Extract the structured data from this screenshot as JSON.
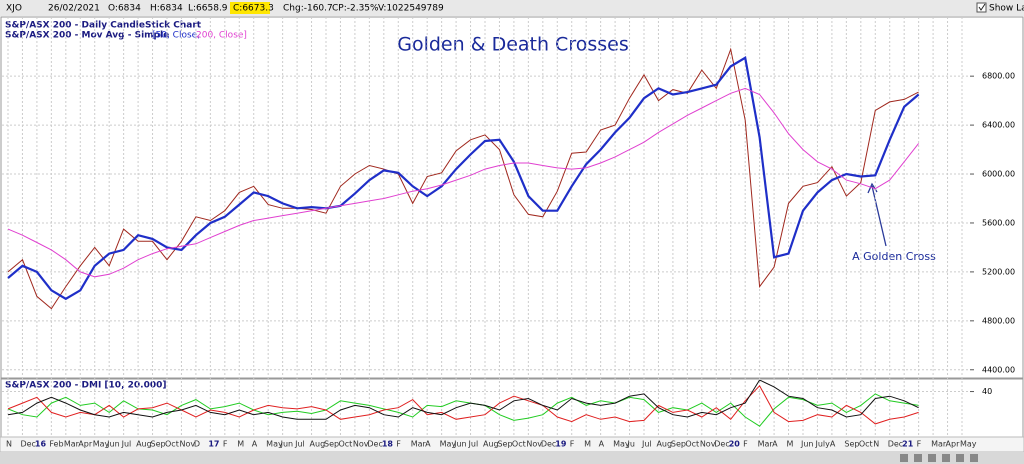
{
  "toolbar": {
    "symbol": "XJO",
    "date": "26/02/2021",
    "open": "O:6834",
    "high": "H:6834",
    "low": "L:6658.9",
    "close": "C:6673.3",
    "change": "Chg:-160.7",
    "change_pct": "CP:-2.35%",
    "volume": "V:1022549789",
    "show_last": "Show Last"
  },
  "chart_data": [
    {
      "type": "line",
      "title": "Golden & Death Crosses",
      "legend_lines": [
        "S&P/ASX 200 - Daily CandleStick Chart",
        "S&P/ASX 200 - Mov Avg - Simple",
        "[50, Close,",
        "200, Close]"
      ],
      "annotation": "A Golden Cross",
      "categories": [
        "N",
        "Dec",
        "16",
        "Feb",
        "Mar",
        "Apr",
        "May",
        "Jun",
        "Jul",
        "Aug",
        "Sep",
        "Oct",
        "Nov",
        "D",
        "17",
        "F",
        "M",
        "A",
        "May",
        "Jun",
        "Jul",
        "Aug",
        "Sep",
        "Oct",
        "Nov",
        "Dec",
        "18",
        "F",
        "Mar",
        "A",
        "May",
        "Jun",
        "Jul",
        "Aug",
        "Sep",
        "Oct",
        "Nov",
        "Dec",
        "19",
        "F",
        "M",
        "A",
        "May",
        "Ju",
        "Jul",
        "Aug",
        "Sep",
        "Oct",
        "Nov",
        "Dec",
        "20",
        "F",
        "Mar",
        "A",
        "M",
        "Jun",
        "July",
        "A",
        "Sep",
        "Oct",
        "N",
        "Dec",
        "21",
        "F",
        "Mar",
        "Apr",
        "May"
      ],
      "series": [
        {
          "color": "#a0281e",
          "values": [
            5200,
            5300,
            5000,
            4900,
            5080,
            5250,
            5400,
            5250,
            5550,
            5450,
            5450,
            5300,
            5450,
            5650,
            5620,
            5700,
            5850,
            5900,
            5750,
            5720,
            5720,
            5710,
            5680,
            5900,
            6000,
            6070,
            6040,
            6000,
            5760,
            5980,
            6010,
            6190,
            6280,
            6320,
            6200,
            5830,
            5670,
            5650,
            5860,
            6170,
            6180,
            6360,
            6400,
            6620,
            6810,
            6600,
            6690,
            6660,
            6850,
            6700,
            7020,
            6440,
            5080,
            5240,
            5760,
            5900,
            5930,
            6060,
            5820,
            5930,
            6520,
            6590,
            6610,
            6670,
            null,
            null,
            null
          ]
        },
        {
          "color": "#1f2fc8",
          "values": [
            5150,
            5250,
            5200,
            5050,
            4980,
            5050,
            5250,
            5350,
            5380,
            5500,
            5470,
            5400,
            5380,
            5500,
            5600,
            5650,
            5750,
            5850,
            5820,
            5760,
            5720,
            5730,
            5720,
            5740,
            5840,
            5950,
            6030,
            6010,
            5900,
            5820,
            5900,
            6040,
            6160,
            6270,
            6280,
            6100,
            5820,
            5700,
            5700,
            5900,
            6080,
            6200,
            6340,
            6460,
            6620,
            6700,
            6650,
            6670,
            6700,
            6730,
            6880,
            6950,
            6300,
            5320,
            5350,
            5700,
            5850,
            5950,
            6000,
            5980,
            5990,
            6280,
            6550,
            6650,
            null,
            null,
            null
          ]
        },
        {
          "color": "#e040d0",
          "values": [
            5550,
            5500,
            5440,
            5380,
            5300,
            5200,
            5160,
            5180,
            5230,
            5300,
            5350,
            5390,
            5410,
            5430,
            5480,
            5530,
            5580,
            5620,
            5640,
            5660,
            5680,
            5700,
            5720,
            5740,
            5760,
            5780,
            5800,
            5830,
            5860,
            5880,
            5910,
            5950,
            5990,
            6040,
            6070,
            6090,
            6090,
            6070,
            6050,
            6040,
            6050,
            6090,
            6140,
            6200,
            6260,
            6340,
            6410,
            6480,
            6540,
            6600,
            6660,
            6700,
            6650,
            6500,
            6330,
            6200,
            6100,
            6040,
            5950,
            5920,
            5880,
            5950,
            6100,
            6250,
            null,
            null,
            null
          ]
        }
      ],
      "ylim": [
        4300,
        7300
      ],
      "yticks": [
        {
          "value": 4400,
          "label": "4400.00"
        },
        {
          "value": 4800,
          "label": "4800.00"
        },
        {
          "value": 5200,
          "label": "5200.00"
        },
        {
          "value": 5600,
          "label": "5600.00"
        },
        {
          "value": 6000,
          "label": "6000.00"
        },
        {
          "value": 6400,
          "label": "6400.00"
        },
        {
          "value": 6800,
          "label": "6800.00"
        }
      ],
      "grid": true
    },
    {
      "type": "line",
      "title": "S&P/ASX 200 - DMI [10, 20.000]",
      "series": [
        {
          "color": "#22cc22",
          "values": [
            25,
            20,
            18,
            30,
            35,
            28,
            30,
            22,
            32,
            25,
            24,
            20,
            28,
            33,
            25,
            27,
            30,
            24,
            20,
            22,
            23,
            21,
            24,
            32,
            30,
            28,
            25,
            22,
            18,
            28,
            27,
            32,
            30,
            28,
            20,
            15,
            17,
            20,
            30,
            35,
            28,
            32,
            30,
            35,
            33,
            22,
            26,
            24,
            30,
            22,
            30,
            18,
            10,
            25,
            35,
            33,
            28,
            30,
            22,
            28,
            38,
            32,
            30,
            28,
            null,
            null,
            null
          ]
        },
        {
          "color": "#e02020",
          "values": [
            25,
            30,
            35,
            22,
            18,
            22,
            20,
            28,
            18,
            25,
            26,
            30,
            24,
            18,
            24,
            22,
            18,
            24,
            28,
            26,
            25,
            27,
            24,
            16,
            18,
            20,
            24,
            26,
            33,
            20,
            22,
            16,
            18,
            20,
            30,
            36,
            32,
            28,
            18,
            14,
            20,
            16,
            18,
            14,
            15,
            28,
            22,
            24,
            18,
            26,
            16,
            32,
            45,
            22,
            14,
            15,
            20,
            18,
            28,
            22,
            12,
            16,
            18,
            22,
            null,
            null,
            null
          ]
        },
        {
          "color": "#111111",
          "values": [
            20,
            22,
            30,
            35,
            30,
            24,
            20,
            18,
            22,
            20,
            18,
            22,
            24,
            28,
            22,
            20,
            24,
            20,
            22,
            18,
            16,
            16,
            16,
            24,
            28,
            26,
            20,
            18,
            26,
            22,
            20,
            26,
            30,
            28,
            24,
            32,
            34,
            28,
            24,
            34,
            30,
            28,
            30,
            36,
            38,
            26,
            20,
            18,
            22,
            20,
            26,
            30,
            50,
            44,
            36,
            34,
            26,
            24,
            18,
            20,
            34,
            36,
            32,
            26,
            null,
            null,
            null
          ]
        }
      ],
      "ylim": [
        5,
        50
      ],
      "yticks": [
        40
      ],
      "grid": true
    }
  ]
}
